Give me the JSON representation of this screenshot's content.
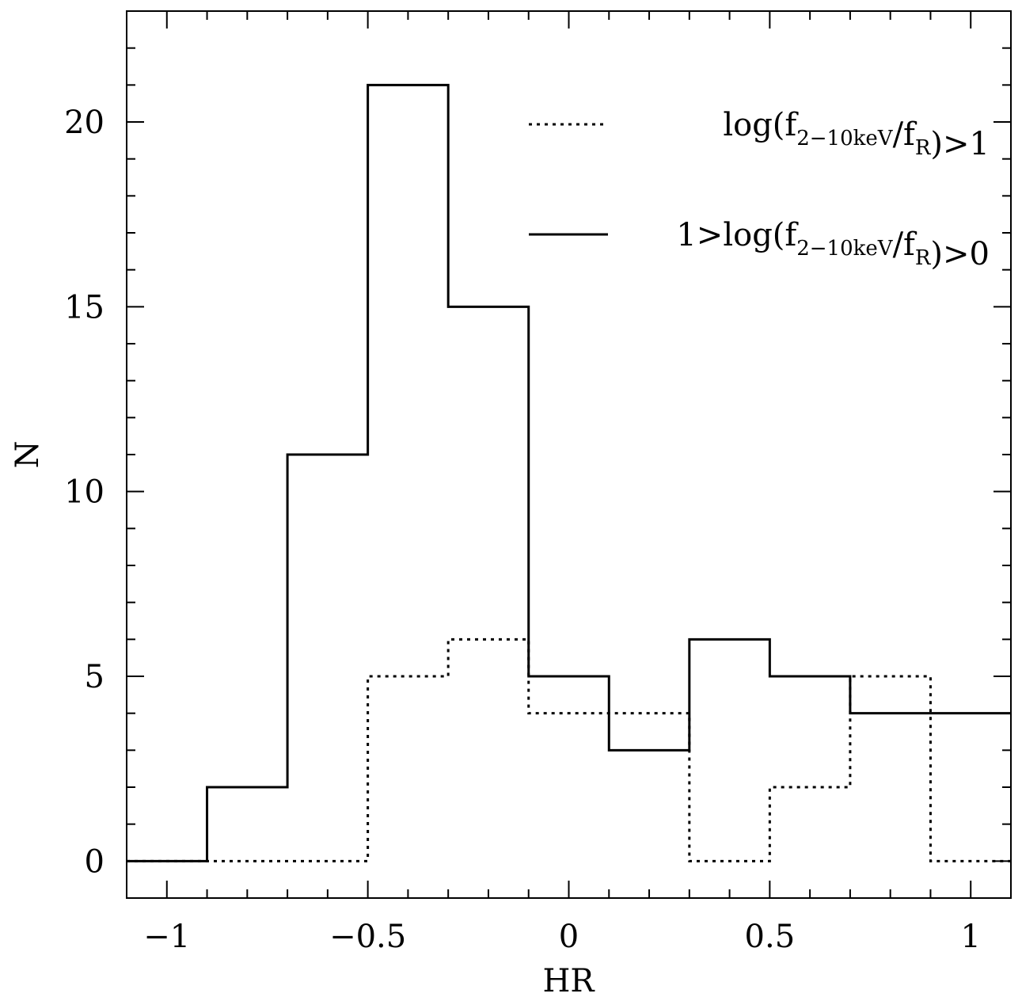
{
  "chart_data": {
    "type": "histogram",
    "xlabel": "HR",
    "ylabel": "N",
    "xlim": [
      -1.1,
      1.1
    ],
    "ylim": [
      -1,
      23
    ],
    "x_ticks_major": [
      -1,
      -0.5,
      0,
      0.5,
      1
    ],
    "x_tick_labels": [
      "−1",
      "−0.5",
      "0",
      "0.5",
      "1"
    ],
    "y_ticks_major": [
      0,
      5,
      10,
      15,
      20
    ],
    "y_tick_labels": [
      "0",
      "5",
      "10",
      "15",
      "20"
    ],
    "legend_position": "top-right",
    "grid": false,
    "bin_edges": [
      -1.1,
      -0.9,
      -0.7,
      -0.5,
      -0.3,
      -0.1,
      0.1,
      0.3,
      0.5,
      0.7,
      0.9,
      1.1
    ],
    "series": [
      {
        "name": "log(f2−10keV/fR)>1",
        "legend_prefix": "",
        "legend_main": "log(f",
        "legend_sub1": "2−10keV",
        "legend_mid": "/f",
        "legend_sub2": "R",
        "legend_suffix": ")>1",
        "style": "dotted",
        "counts": [
          0,
          0,
          0,
          5,
          6,
          4,
          4,
          0,
          2,
          5,
          0
        ]
      },
      {
        "name": "1>log(f2−10keV/fR)>0",
        "legend_prefix": "1>",
        "legend_main": "log(f",
        "legend_sub1": "2−10keV",
        "legend_mid": "/f",
        "legend_sub2": "R",
        "legend_suffix": ")>0",
        "style": "solid",
        "counts": [
          0,
          2,
          11,
          21,
          15,
          5,
          3,
          6,
          5,
          4,
          4
        ]
      }
    ]
  },
  "colors": {
    "line": "#000000",
    "background": "#ffffff"
  }
}
